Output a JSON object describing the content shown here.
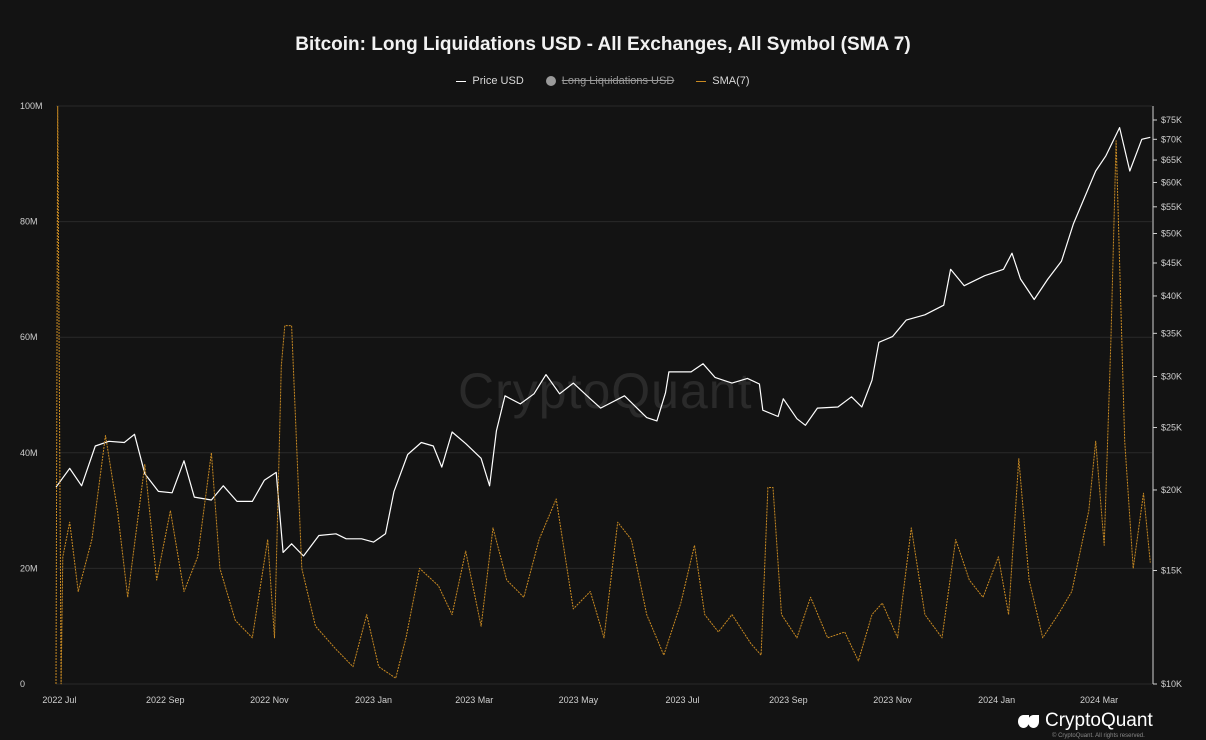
{
  "chart_data": {
    "type": "line",
    "title": "Bitcoin: Long Liquidations USD - All Exchanges, All Symbol (SMA 7)",
    "legend": [
      {
        "label": "Price USD",
        "color": "#ffffff",
        "hidden": false
      },
      {
        "label": "Long Liquidations USD",
        "color": "#9a9a9a",
        "hidden": true
      },
      {
        "label": "SMA(7)",
        "color": "#c98a22",
        "hidden": false
      }
    ],
    "x_ticks": [
      "2022 Jul",
      "2022 Sep",
      "2022 Nov",
      "2023 Jan",
      "2023 Mar",
      "2023 May",
      "2023 Jul",
      "2023 Sep",
      "2023 Nov",
      "2024 Jan",
      "2024 Mar"
    ],
    "y_left_ticks": [
      "0",
      "20M",
      "40M",
      "60M",
      "80M",
      "100M"
    ],
    "y_left_range": [
      0,
      100000000
    ],
    "y_right_ticks": [
      "$10K",
      "$15K",
      "$20K",
      "$25K",
      "$30K",
      "$35K",
      "$40K",
      "$45K",
      "$50K",
      "$55K",
      "$60K",
      "$65K",
      "$70K",
      "$75K"
    ],
    "y_right_range": [
      10000,
      75000
    ],
    "y_right_scale": "log",
    "x_range": [
      "2022-06-29",
      "2024-04-01"
    ],
    "grid": true,
    "legend_position": "top-center",
    "series": [
      {
        "name": "Price USD",
        "axis": "right",
        "color": "#ffffff",
        "points": [
          [
            "2022-06-29",
            20200
          ],
          [
            "2022-07-07",
            21600
          ],
          [
            "2022-07-14",
            20300
          ],
          [
            "2022-07-22",
            23400
          ],
          [
            "2022-07-30",
            23800
          ],
          [
            "2022-08-08",
            23700
          ],
          [
            "2022-08-14",
            24400
          ],
          [
            "2022-08-20",
            21200
          ],
          [
            "2022-08-28",
            19900
          ],
          [
            "2022-09-05",
            19800
          ],
          [
            "2022-09-12",
            22200
          ],
          [
            "2022-09-18",
            19500
          ],
          [
            "2022-09-28",
            19300
          ],
          [
            "2022-10-05",
            20300
          ],
          [
            "2022-10-13",
            19200
          ],
          [
            "2022-10-22",
            19200
          ],
          [
            "2022-10-29",
            20700
          ],
          [
            "2022-11-05",
            21300
          ],
          [
            "2022-11-09",
            16000
          ],
          [
            "2022-11-14",
            16500
          ],
          [
            "2022-11-21",
            15800
          ],
          [
            "2022-11-30",
            17000
          ],
          [
            "2022-12-10",
            17100
          ],
          [
            "2022-12-16",
            16800
          ],
          [
            "2022-12-25",
            16800
          ],
          [
            "2023-01-01",
            16600
          ],
          [
            "2023-01-08",
            17100
          ],
          [
            "2023-01-13",
            19900
          ],
          [
            "2023-01-21",
            22700
          ],
          [
            "2023-01-29",
            23700
          ],
          [
            "2023-02-05",
            23400
          ],
          [
            "2023-02-10",
            21700
          ],
          [
            "2023-02-16",
            24600
          ],
          [
            "2023-02-24",
            23600
          ],
          [
            "2023-03-05",
            22400
          ],
          [
            "2023-03-10",
            20300
          ],
          [
            "2023-03-14",
            24700
          ],
          [
            "2023-03-19",
            28000
          ],
          [
            "2023-03-28",
            27200
          ],
          [
            "2023-04-05",
            28200
          ],
          [
            "2023-04-12",
            30200
          ],
          [
            "2023-04-20",
            28200
          ],
          [
            "2023-04-28",
            29300
          ],
          [
            "2023-05-08",
            27700
          ],
          [
            "2023-05-14",
            26800
          ],
          [
            "2023-05-28",
            28000
          ],
          [
            "2023-06-10",
            25900
          ],
          [
            "2023-06-16",
            25600
          ],
          [
            "2023-06-21",
            28300
          ],
          [
            "2023-06-23",
            30500
          ],
          [
            "2023-07-06",
            30500
          ],
          [
            "2023-07-13",
            31400
          ],
          [
            "2023-07-20",
            29900
          ],
          [
            "2023-07-30",
            29300
          ],
          [
            "2023-08-08",
            29800
          ],
          [
            "2023-08-15",
            29200
          ],
          [
            "2023-08-17",
            26600
          ],
          [
            "2023-08-26",
            26000
          ],
          [
            "2023-08-29",
            27700
          ],
          [
            "2023-09-06",
            25800
          ],
          [
            "2023-09-11",
            25200
          ],
          [
            "2023-09-18",
            26800
          ],
          [
            "2023-09-30",
            26900
          ],
          [
            "2023-10-08",
            27900
          ],
          [
            "2023-10-14",
            26900
          ],
          [
            "2023-10-20",
            29600
          ],
          [
            "2023-10-24",
            33900
          ],
          [
            "2023-11-01",
            34600
          ],
          [
            "2023-11-09",
            36700
          ],
          [
            "2023-11-20",
            37400
          ],
          [
            "2023-12-01",
            38700
          ],
          [
            "2023-12-05",
            44000
          ],
          [
            "2023-12-13",
            41500
          ],
          [
            "2023-12-25",
            43000
          ],
          [
            "2024-01-05",
            44000
          ],
          [
            "2024-01-10",
            46600
          ],
          [
            "2024-01-15",
            42500
          ],
          [
            "2024-01-23",
            39500
          ],
          [
            "2024-01-31",
            42500
          ],
          [
            "2024-02-08",
            45300
          ],
          [
            "2024-02-15",
            51800
          ],
          [
            "2024-02-28",
            62500
          ],
          [
            "2024-03-05",
            66000
          ],
          [
            "2024-03-13",
            73000
          ],
          [
            "2024-03-19",
            62500
          ],
          [
            "2024-03-26",
            70000
          ],
          [
            "2024-03-31",
            70500
          ]
        ]
      },
      {
        "name": "SMA(7)",
        "axis": "left",
        "color": "#c98a22",
        "points": [
          [
            "2022-06-29",
            0
          ],
          [
            "2022-06-30",
            100000000
          ],
          [
            "2022-07-02",
            28000
          ],
          [
            "2022-07-03",
            22000000
          ],
          [
            "2022-07-07",
            28000000
          ],
          [
            "2022-07-12",
            16000000
          ],
          [
            "2022-07-20",
            25000000
          ],
          [
            "2022-07-28",
            43000000
          ],
          [
            "2022-08-04",
            30000000
          ],
          [
            "2022-08-10",
            15000000
          ],
          [
            "2022-08-20",
            38000000
          ],
          [
            "2022-08-27",
            18000000
          ],
          [
            "2022-09-04",
            30000000
          ],
          [
            "2022-09-12",
            16000000
          ],
          [
            "2022-09-20",
            22000000
          ],
          [
            "2022-09-28",
            40000000
          ],
          [
            "2022-10-03",
            20000000
          ],
          [
            "2022-10-12",
            11000000
          ],
          [
            "2022-10-22",
            8000000
          ],
          [
            "2022-10-31",
            25000000
          ],
          [
            "2022-11-04",
            8000000
          ],
          [
            "2022-11-08",
            55000000
          ],
          [
            "2022-11-10",
            62000000
          ],
          [
            "2022-11-14",
            62000000
          ],
          [
            "2022-11-20",
            20000000
          ],
          [
            "2022-11-28",
            10000000
          ],
          [
            "2022-12-10",
            6000000
          ],
          [
            "2022-12-20",
            3000000
          ],
          [
            "2022-12-28",
            12000000
          ],
          [
            "2023-01-04",
            3000000
          ],
          [
            "2023-01-14",
            1000000
          ],
          [
            "2023-01-20",
            8000000
          ],
          [
            "2023-01-28",
            20000000
          ],
          [
            "2023-02-08",
            17000000
          ],
          [
            "2023-02-16",
            12000000
          ],
          [
            "2023-02-24",
            23000000
          ],
          [
            "2023-03-05",
            10000000
          ],
          [
            "2023-03-12",
            27000000
          ],
          [
            "2023-03-20",
            18000000
          ],
          [
            "2023-03-30",
            15000000
          ],
          [
            "2023-04-08",
            25000000
          ],
          [
            "2023-04-18",
            32000000
          ],
          [
            "2023-04-28",
            13000000
          ],
          [
            "2023-05-08",
            16000000
          ],
          [
            "2023-05-16",
            8000000
          ],
          [
            "2023-05-24",
            28000000
          ],
          [
            "2023-06-01",
            25000000
          ],
          [
            "2023-06-10",
            12000000
          ],
          [
            "2023-06-20",
            5000000
          ],
          [
            "2023-06-30",
            14000000
          ],
          [
            "2023-07-08",
            24000000
          ],
          [
            "2023-07-14",
            12000000
          ],
          [
            "2023-07-22",
            9000000
          ],
          [
            "2023-07-30",
            12000000
          ],
          [
            "2023-08-10",
            7000000
          ],
          [
            "2023-08-16",
            5000000
          ],
          [
            "2023-08-20",
            34000000
          ],
          [
            "2023-08-23",
            34000000
          ],
          [
            "2023-08-28",
            12000000
          ],
          [
            "2023-09-06",
            8000000
          ],
          [
            "2023-09-14",
            15000000
          ],
          [
            "2023-09-24",
            8000000
          ],
          [
            "2023-10-04",
            9000000
          ],
          [
            "2023-10-12",
            4000000
          ],
          [
            "2023-10-20",
            12000000
          ],
          [
            "2023-10-26",
            14000000
          ],
          [
            "2023-11-04",
            8000000
          ],
          [
            "2023-11-12",
            27000000
          ],
          [
            "2023-11-20",
            12000000
          ],
          [
            "2023-11-30",
            8000000
          ],
          [
            "2023-12-08",
            25000000
          ],
          [
            "2023-12-16",
            18000000
          ],
          [
            "2023-12-24",
            15000000
          ],
          [
            "2024-01-02",
            22000000
          ],
          [
            "2024-01-08",
            12000000
          ],
          [
            "2024-01-14",
            39000000
          ],
          [
            "2024-01-20",
            18000000
          ],
          [
            "2024-01-28",
            8000000
          ],
          [
            "2024-02-06",
            12000000
          ],
          [
            "2024-02-14",
            16000000
          ],
          [
            "2024-02-24",
            30000000
          ],
          [
            "2024-02-28",
            42000000
          ],
          [
            "2024-03-04",
            24000000
          ],
          [
            "2024-03-08",
            60000000
          ],
          [
            "2024-03-11",
            94000000
          ],
          [
            "2024-03-16",
            42000000
          ],
          [
            "2024-03-21",
            20000000
          ],
          [
            "2024-03-27",
            33000000
          ],
          [
            "2024-03-31",
            21000000
          ]
        ]
      }
    ]
  },
  "watermark": "CryptoQuant",
  "brand": {
    "name": "CryptoQuant",
    "copyright": "© CryptoQuant. All rights reserved."
  },
  "colors": {
    "background": "#131313",
    "price": "#ffffff",
    "sma": "#c98a22",
    "grid": "#2a2a2a"
  }
}
